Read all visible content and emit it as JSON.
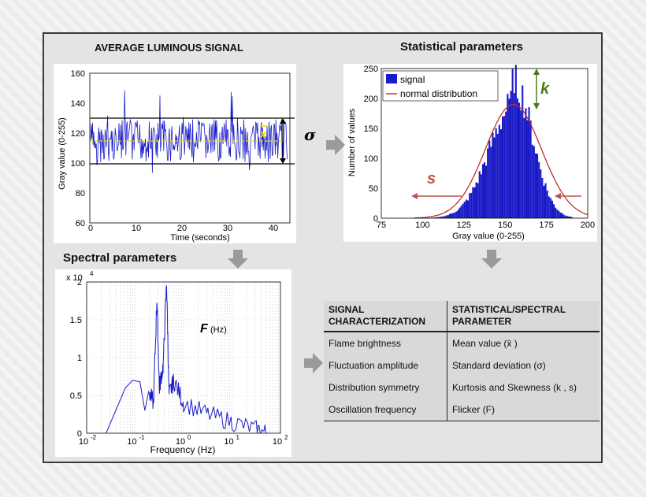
{
  "titles": {
    "luminous": "AVERAGE LUMINOUS SIGNAL",
    "statistical": "Statistical  parameters",
    "spectral": "Spectral  parameters"
  },
  "signal_chart": {
    "ylabel": "Gray value (0-255)",
    "xlabel": "Time (seconds)",
    "yticks": [
      "160",
      "140",
      "120",
      "100",
      "80",
      "60"
    ],
    "xticks": [
      "0",
      "10",
      "20",
      "30",
      "40"
    ],
    "mean_symbol": "x",
    "sigma_symbol": "σ"
  },
  "histogram": {
    "ylabel": "Number of values",
    "xlabel": "Gray value (0-255)",
    "yticks": [
      "250",
      "200",
      "150",
      "100",
      "50",
      "0"
    ],
    "xticks": [
      "75",
      "100",
      "125",
      "150",
      "175",
      "200"
    ],
    "legend": [
      "signal",
      "normal distribution"
    ],
    "k_symbol": "k",
    "s_symbol": "s"
  },
  "spectrum": {
    "exponent": "x 10",
    "exponent_power": "4",
    "yticks": [
      "2",
      "1.5",
      "1",
      "0.5",
      "0"
    ],
    "xlabel": "Frequency (Hz)",
    "xticks_base": [
      "10",
      "10",
      "10",
      "10",
      "10"
    ],
    "xticks_pow": [
      "-2",
      "-1",
      "0",
      "1",
      "2"
    ],
    "f_symbol": "F",
    "f_unit": "(Hz)"
  },
  "table": {
    "header": [
      "SIGNAL CHARACTERIZATION",
      "STATISTICAL/SPECTRAL PARAMETER"
    ],
    "rows": [
      [
        "Flame brightness",
        "Mean value (x̄ )"
      ],
      [
        "Fluctuation amplitude",
        "Standard deviation (σ)"
      ],
      [
        "Distribution symmetry",
        "Kurtosis and Skewness (k , s)"
      ],
      [
        "Oscillation frequency",
        "Flicker  (F)"
      ]
    ]
  },
  "colors": {
    "signal": "#1a1ac8",
    "normal": "#c0302a",
    "k": "#4a7a1a",
    "s": "#c0504d",
    "mean": "#e8e000",
    "arrow": "#9a9a9a"
  }
}
